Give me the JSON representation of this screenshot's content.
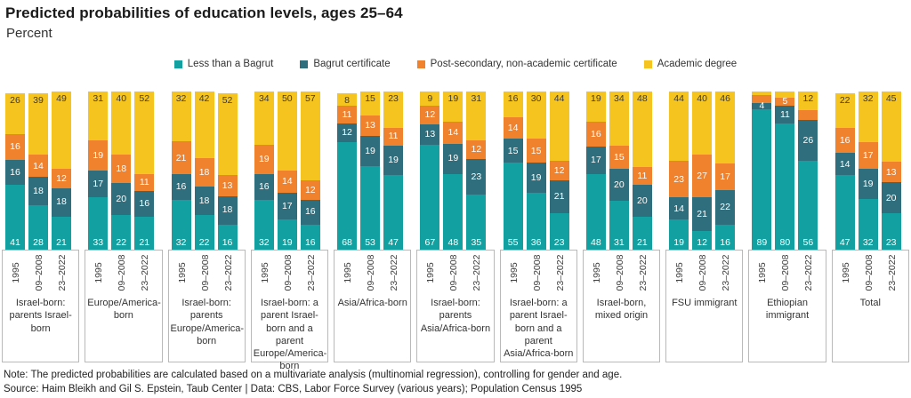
{
  "title": "Predicted probabilities of education levels, ages 25–64",
  "subtitle": "Percent",
  "note": "Note: The predicted probabilities are calculated based on a multivariate analysis (multinomial regression), controlling for gender and age.",
  "source": "Source: Haim Bleikh and Gil S. Epstein, Taub Center | Data: CBS, Labor Force Survey (various years); Population Census 1995",
  "legend": [
    {
      "label": "Less than a Bagrut",
      "color": "#13A0A0"
    },
    {
      "label": "Bagrut certificate",
      "color": "#2F6E7C"
    },
    {
      "label": "Post-secondary, non-academic certificate",
      "color": "#F0812D"
    },
    {
      "label": "Academic degree",
      "color": "#F5C41F"
    }
  ],
  "chart_data": {
    "type": "bar",
    "stacked": true,
    "ylim": [
      0,
      100
    ],
    "grid": false,
    "legend_position": "top",
    "unit": "percent",
    "series_names": [
      "Less than a Bagrut",
      "Bagrut certificate",
      "Post-secondary, non-academic certificate",
      "Academic degree"
    ],
    "colors": [
      "#13A0A0",
      "#2F6E7C",
      "#F0812D",
      "#F5C41F"
    ],
    "years": [
      "1995",
      "09–2008",
      "23–2022"
    ],
    "groups": [
      {
        "label": "Israel-born: parents Israel-born",
        "bars": [
          {
            "year": "1995",
            "values": [
              41,
              16,
              16,
              26
            ],
            "labels": [
              "41",
              "16",
              "16",
              "26"
            ]
          },
          {
            "year": "09–2008",
            "values": [
              28,
              18,
              14,
              39
            ],
            "labels": [
              "28",
              "18",
              "14",
              "39"
            ]
          },
          {
            "year": "23–2022",
            "values": [
              21,
              18,
              12,
              49
            ],
            "labels": [
              "21",
              "18",
              "12",
              "49"
            ]
          }
        ]
      },
      {
        "label": "Europe/America-born",
        "bars": [
          {
            "year": "1995",
            "values": [
              33,
              17,
              19,
              31
            ],
            "labels": [
              "33",
              "17",
              "19",
              "31"
            ]
          },
          {
            "year": "09–2008",
            "values": [
              22,
              20,
              18,
              40
            ],
            "labels": [
              "22",
              "20",
              "18",
              "40"
            ]
          },
          {
            "year": "23–2022",
            "values": [
              21,
              16,
              11,
              52
            ],
            "labels": [
              "21",
              "16",
              "11",
              "52"
            ]
          }
        ]
      },
      {
        "label": "Israel-born: parents Europe/America-born",
        "bars": [
          {
            "year": "1995",
            "values": [
              32,
              16,
              21,
              32
            ],
            "labels": [
              "32",
              "16",
              "21",
              "32"
            ]
          },
          {
            "year": "09–2008",
            "values": [
              22,
              18,
              18,
              42
            ],
            "labels": [
              "22",
              "18",
              "18",
              "42"
            ]
          },
          {
            "year": "23–2022",
            "values": [
              16,
              18,
              13,
              52
            ],
            "labels": [
              "16",
              "18",
              "13",
              "52"
            ]
          }
        ]
      },
      {
        "label": "Israel-born: a parent Israel-born and a parent Europe/America-born",
        "bars": [
          {
            "year": "1995",
            "values": [
              32,
              16,
              19,
              34
            ],
            "labels": [
              "32",
              "16",
              "19",
              "34"
            ]
          },
          {
            "year": "09–2008",
            "values": [
              19,
              17,
              14,
              50
            ],
            "labels": [
              "19",
              "17",
              "14",
              "50"
            ]
          },
          {
            "year": "23–2022",
            "values": [
              16,
              16,
              12,
              57
            ],
            "labels": [
              "16",
              "16",
              "12",
              "57"
            ]
          }
        ]
      },
      {
        "label": "Asia/Africa-born",
        "bars": [
          {
            "year": "1995",
            "values": [
              68,
              12,
              11,
              8
            ],
            "labels": [
              "68",
              "12",
              "11",
              "8"
            ]
          },
          {
            "year": "09–2008",
            "values": [
              53,
              19,
              13,
              15
            ],
            "labels": [
              "53",
              "19",
              "13",
              "15"
            ]
          },
          {
            "year": "23–2022",
            "values": [
              47,
              19,
              11,
              23
            ],
            "labels": [
              "47",
              "19",
              "11",
              "23"
            ]
          }
        ]
      },
      {
        "label": "Israel-born: parents Asia/Africa-born",
        "bars": [
          {
            "year": "1995",
            "values": [
              67,
              13,
              12,
              9
            ],
            "labels": [
              "67",
              "13",
              "12",
              "9"
            ]
          },
          {
            "year": "09–2008",
            "values": [
              48,
              19,
              14,
              19
            ],
            "labels": [
              "48",
              "19",
              "14",
              "19"
            ]
          },
          {
            "year": "23–2022",
            "values": [
              35,
              23,
              12,
              31
            ],
            "labels": [
              "35",
              "23",
              "12",
              "31"
            ]
          }
        ]
      },
      {
        "label": "Israel-born: a parent Israel-born and a parent Asia/Africa-born",
        "bars": [
          {
            "year": "1995",
            "values": [
              55,
              15,
              14,
              16
            ],
            "labels": [
              "55",
              "15",
              "14",
              "16"
            ]
          },
          {
            "year": "09–2008",
            "values": [
              36,
              19,
              15,
              30
            ],
            "labels": [
              "36",
              "19",
              "15",
              "30"
            ]
          },
          {
            "year": "23–2022",
            "values": [
              23,
              21,
              12,
              44
            ],
            "labels": [
              "23",
              "21",
              "12",
              "44"
            ]
          }
        ]
      },
      {
        "label": "Israel-born, mixed origin",
        "bars": [
          {
            "year": "1995",
            "values": [
              48,
              17,
              16,
              19
            ],
            "labels": [
              "48",
              "17",
              "16",
              "19"
            ]
          },
          {
            "year": "09–2008",
            "values": [
              31,
              20,
              15,
              34
            ],
            "labels": [
              "31",
              "20",
              "15",
              "34"
            ]
          },
          {
            "year": "23–2022",
            "values": [
              21,
              20,
              11,
              48
            ],
            "labels": [
              "21",
              "20",
              "11",
              "48"
            ]
          }
        ]
      },
      {
        "label": "FSU immigrant",
        "bars": [
          {
            "year": "1995",
            "values": [
              19,
              14,
              23,
              44
            ],
            "labels": [
              "19",
              "14",
              "23",
              "44"
            ]
          },
          {
            "year": "09–2008",
            "values": [
              12,
              21,
              27,
              40
            ],
            "labels": [
              "12",
              "21",
              "27",
              "40"
            ]
          },
          {
            "year": "23–2022",
            "values": [
              16,
              22,
              17,
              46
            ],
            "labels": [
              "16",
              "22",
              "17",
              "46"
            ]
          }
        ]
      },
      {
        "label": "Ethiopian immigrant",
        "bars": [
          {
            "year": "1995",
            "values": [
              89,
              4,
              5,
              2
            ],
            "labels": [
              "89",
              "4",
              "",
              ""
            ]
          },
          {
            "year": "09–2008",
            "values": [
              80,
              11,
              5,
              4
            ],
            "labels": [
              "80",
              "11",
              "5",
              ""
            ]
          },
          {
            "year": "23–2022",
            "values": [
              56,
              26,
              6,
              12
            ],
            "labels": [
              "56",
              "26",
              "",
              "12"
            ]
          }
        ]
      },
      {
        "label": "Total",
        "bars": [
          {
            "year": "1995",
            "values": [
              47,
              14,
              16,
              22
            ],
            "labels": [
              "47",
              "14",
              "16",
              "22"
            ]
          },
          {
            "year": "09–2008",
            "values": [
              32,
              19,
              17,
              32
            ],
            "labels": [
              "32",
              "19",
              "17",
              "32"
            ]
          },
          {
            "year": "23–2022",
            "values": [
              23,
              20,
              13,
              45
            ],
            "labels": [
              "23",
              "20",
              "13",
              "45"
            ]
          }
        ]
      }
    ]
  }
}
